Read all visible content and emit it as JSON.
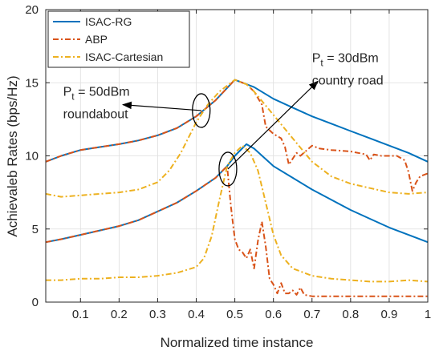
{
  "chart_data": {
    "type": "line",
    "xlabel": "Normalized time instance",
    "ylabel": "Achievaleb Rates (bps/Hz)",
    "xlim": [
      0.01,
      1.0
    ],
    "ylim": [
      0,
      20
    ],
    "xticks": [
      "0.1",
      "0.2",
      "0.3",
      "0.4",
      "0.5",
      "0.6",
      "0.7",
      "0.8",
      "0.9",
      "1"
    ],
    "yticks": [
      "0",
      "5",
      "10",
      "15",
      "20"
    ],
    "grid": true,
    "legend_position": "top-left",
    "series": [
      {
        "name": "ISAC-RG",
        "color": "#0072BD",
        "style": "solid",
        "groups": [
          {
            "x": [
              0.01,
              0.05,
              0.1,
              0.15,
              0.2,
              0.25,
              0.3,
              0.35,
              0.4,
              0.45,
              0.5,
              0.55,
              0.6,
              0.65,
              0.7,
              0.75,
              0.8,
              0.85,
              0.9,
              0.95,
              1.0
            ],
            "y": [
              9.6,
              10.0,
              10.4,
              10.6,
              10.8,
              11.05,
              11.4,
              11.9,
              12.7,
              13.8,
              15.2,
              14.7,
              13.9,
              13.3,
              12.7,
              12.2,
              11.7,
              11.2,
              10.7,
              10.2,
              9.6
            ]
          },
          {
            "x": [
              0.01,
              0.05,
              0.1,
              0.15,
              0.2,
              0.25,
              0.3,
              0.35,
              0.4,
              0.45,
              0.48,
              0.5,
              0.53,
              0.55,
              0.6,
              0.65,
              0.7,
              0.75,
              0.8,
              0.85,
              0.9,
              0.95,
              1.0
            ],
            "y": [
              4.1,
              4.3,
              4.6,
              4.9,
              5.2,
              5.6,
              6.2,
              6.8,
              7.6,
              8.5,
              9.3,
              10.0,
              10.8,
              10.5,
              9.3,
              8.5,
              7.7,
              7.0,
              6.3,
              5.7,
              5.1,
              4.6,
              4.1
            ]
          }
        ]
      },
      {
        "name": "ABP",
        "color": "#D95319",
        "style": "dashdot",
        "groups": [
          {
            "x": [
              0.01,
              0.05,
              0.1,
              0.15,
              0.2,
              0.25,
              0.3,
              0.35,
              0.4,
              0.45,
              0.5,
              0.53,
              0.55,
              0.57,
              0.58,
              0.6,
              0.62,
              0.63,
              0.64,
              0.65,
              0.66,
              0.67,
              0.7,
              0.72,
              0.75,
              0.8,
              0.84,
              0.85,
              0.86,
              0.88,
              0.9,
              0.92,
              0.94,
              0.95,
              0.96,
              0.97,
              0.98,
              1.0
            ],
            "y": [
              9.6,
              10.0,
              10.4,
              10.6,
              10.8,
              11.05,
              11.4,
              11.9,
              12.7,
              13.8,
              15.2,
              14.9,
              14.4,
              13.5,
              12.0,
              11.5,
              11.2,
              10.6,
              9.4,
              9.8,
              10.2,
              10.0,
              10.7,
              10.5,
              10.4,
              10.3,
              10.1,
              9.7,
              10.1,
              10.0,
              10.0,
              10.0,
              9.7,
              8.9,
              7.6,
              8.2,
              8.6,
              8.8
            ]
          },
          {
            "x": [
              0.01,
              0.05,
              0.1,
              0.15,
              0.2,
              0.25,
              0.3,
              0.35,
              0.4,
              0.45,
              0.48,
              0.49,
              0.5,
              0.51,
              0.52,
              0.53,
              0.54,
              0.55,
              0.56,
              0.57,
              0.58,
              0.59,
              0.6,
              0.61,
              0.62,
              0.63,
              0.64,
              0.65,
              0.66,
              0.67,
              0.68,
              0.7,
              0.75,
              0.8,
              0.9,
              1.0
            ],
            "y": [
              4.1,
              4.3,
              4.6,
              4.9,
              5.2,
              5.6,
              6.2,
              6.8,
              7.6,
              8.5,
              9.3,
              6.5,
              4.3,
              3.6,
              3.4,
              3.0,
              3.6,
              2.3,
              4.2,
              5.5,
              3.8,
              1.6,
              1.2,
              0.6,
              1.3,
              0.6,
              0.6,
              0.8,
              0.5,
              1.0,
              0.5,
              0.4,
              0.4,
              0.4,
              0.4,
              0.4
            ]
          }
        ]
      },
      {
        "name": "ISAC-Cartesian",
        "color": "#EDB120",
        "style": "dashdot",
        "groups": [
          {
            "x": [
              0.01,
              0.05,
              0.1,
              0.15,
              0.2,
              0.25,
              0.3,
              0.33,
              0.36,
              0.4,
              0.43,
              0.46,
              0.5,
              0.53,
              0.55,
              0.6,
              0.65,
              0.7,
              0.75,
              0.8,
              0.85,
              0.9,
              0.95,
              1.0
            ],
            "y": [
              7.4,
              7.2,
              7.3,
              7.4,
              7.5,
              7.7,
              8.2,
              9.0,
              10.2,
              12.3,
              13.5,
              14.4,
              15.2,
              14.9,
              14.4,
              12.8,
              11.2,
              9.6,
              8.6,
              8.1,
              7.8,
              7.5,
              7.4,
              7.5
            ]
          },
          {
            "x": [
              0.01,
              0.05,
              0.1,
              0.15,
              0.2,
              0.25,
              0.3,
              0.35,
              0.4,
              0.42,
              0.44,
              0.46,
              0.48,
              0.5,
              0.52,
              0.54,
              0.56,
              0.58,
              0.6,
              0.62,
              0.65,
              0.7,
              0.75,
              0.8,
              0.85,
              0.9,
              0.95,
              1.0
            ],
            "y": [
              1.5,
              1.5,
              1.6,
              1.6,
              1.7,
              1.7,
              1.8,
              2.0,
              2.4,
              3.0,
              4.5,
              7.0,
              9.3,
              10.2,
              10.7,
              10.2,
              9.0,
              6.8,
              4.6,
              3.2,
              2.3,
              1.8,
              1.6,
              1.5,
              1.4,
              1.4,
              1.5,
              1.4
            ]
          }
        ]
      }
    ],
    "annotations": [
      {
        "id": "pt50",
        "subscript": "t",
        "value": " = 50dBm",
        "scenario": "roundabout",
        "text_x": 0.055,
        "text_y": 14.1,
        "ellipse_x": 0.413,
        "ellipse_y": 13.1,
        "arrow_to_x": 0.21,
        "arrow_to_y": 13.5
      },
      {
        "id": "pt30",
        "subscript": "t",
        "value": " = 30dBm",
        "scenario": "country road",
        "text_x": 0.7,
        "text_y": 16.4,
        "ellipse_x": 0.482,
        "ellipse_y": 9.1,
        "arrow_to_x": 0.715,
        "arrow_to_y": 15.1
      }
    ],
    "annotation_prefix": "P"
  }
}
